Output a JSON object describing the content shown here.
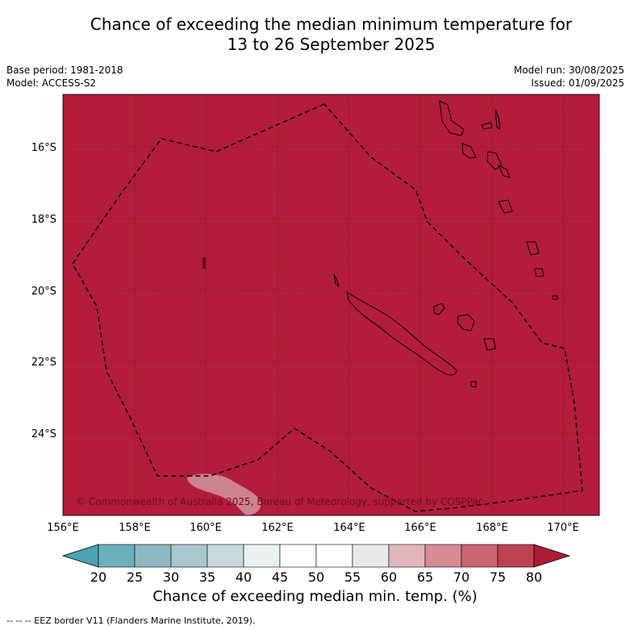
{
  "title_line1": "Chance of exceeding the median minimum temperature for",
  "title_line2": "13 to 26 September 2025",
  "base_period": "Base period: 1981-2018",
  "model": "Model: ACCESS-S2",
  "model_run": "Model run: 30/08/2025",
  "issued": "Issued: 01/09/2025",
  "copyright": "© Commonwealth of Australia 2025, Bureau of Meteorology, supported by COSPPac",
  "map_fill_color": "#b31c3a",
  "lat_labels": [
    "16°S",
    "18°S",
    "20°S",
    "22°S",
    "24°S"
  ],
  "lon_labels": [
    "156°E",
    "158°E",
    "160°E",
    "162°E",
    "164°E",
    "166°E",
    "168°E",
    "170°E"
  ],
  "colorbar": {
    "ticks": [
      "20",
      "25",
      "30",
      "35",
      "40",
      "45",
      "50",
      "55",
      "60",
      "65",
      "70",
      "75",
      "80"
    ],
    "colors": [
      "#4aa3b3",
      "#6cb0bd",
      "#8eb9c2",
      "#a9c7cc",
      "#c8d9dc",
      "#ebf0f1",
      "#ffffff",
      "#ffffff",
      "#e8e8e8",
      "#e1b6bb",
      "#d68b95",
      "#c96672",
      "#bc4151",
      "#ad1c35"
    ],
    "title": "Chance of exceeding median min. temp. (%)"
  },
  "footer": "--  --  -- EEZ border V11 (Flanders Marine Institute, 2019)."
}
